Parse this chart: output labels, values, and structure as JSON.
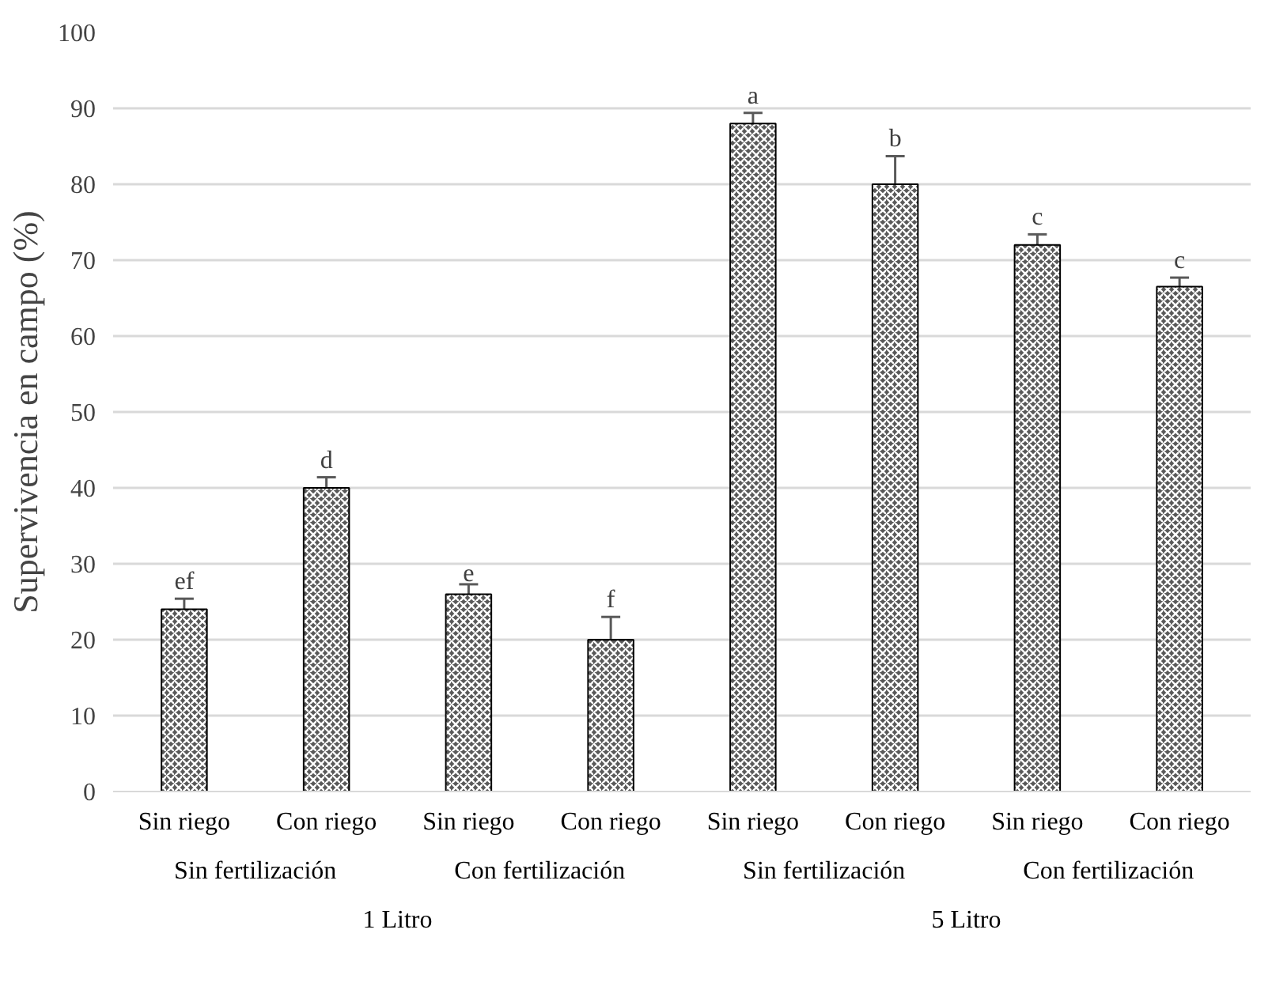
{
  "chart_data": {
    "type": "bar",
    "ylabel": "Supervivencia en campo (%)",
    "categories": [
      "Sin riego",
      "Con riego",
      "Sin riego",
      "Con riego",
      "Sin riego",
      "Con riego",
      "Sin riego",
      "Con riego"
    ],
    "values": [
      24,
      40,
      26,
      20,
      88,
      80,
      72,
      66.5
    ],
    "errors": [
      1.4,
      1.4,
      1.3,
      3,
      1.4,
      3.7,
      1.4,
      1.2
    ],
    "value_labels": [
      "ef",
      "d",
      "e",
      "f",
      "a",
      "b",
      "c",
      "c"
    ],
    "annotations": [
      "Sin fertilización",
      "Con fertilización",
      "Sin fertilización",
      "Con fertilización",
      "1 Litro",
      "5 Litro"
    ],
    "color": "#595959",
    "ylim": [
      0,
      100
    ],
    "yticks": [
      0,
      10,
      20,
      30,
      40,
      50,
      60,
      70,
      80,
      90,
      100
    ],
    "grid": "y"
  }
}
